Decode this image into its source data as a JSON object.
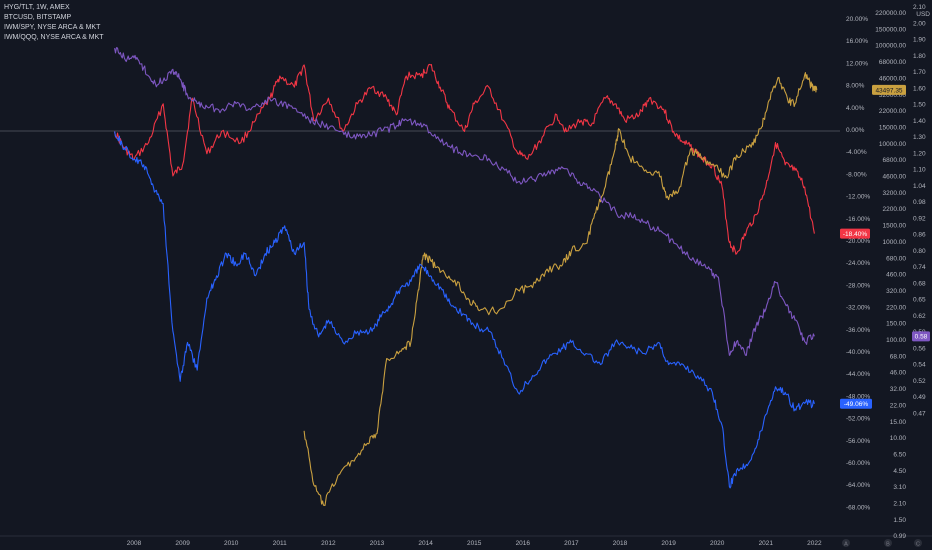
{
  "legend": {
    "line1": "HYG/TLT, 1W, AMEX",
    "line2": "BTCUSD, BITSTAMP",
    "line3": "IWM/SPY, NYSE ARCA & MKT",
    "line4": "IWM/QQQ, NYSE ARCA & MKT"
  },
  "axis_icons": [
    "A",
    "B",
    "C"
  ],
  "colors": {
    "background": "#131722",
    "text": "#b2b5be",
    "zero_line": "#787b86",
    "hyg_tlt": "#f23645",
    "btc": "#c9a040",
    "iwm_spy": "#2962ff",
    "iwm_qqq": "#7e57c2"
  },
  "chart_data": {
    "type": "line",
    "x_unit": "year",
    "x_range": [
      2007.0,
      2022.2
    ],
    "x_ticks": [
      "2008",
      "2009",
      "2010",
      "2011",
      "2012",
      "2013",
      "2014",
      "2015",
      "2016",
      "2017",
      "2018",
      "2019",
      "2020",
      "2021",
      "2022"
    ],
    "grid": false,
    "percent_axis": {
      "label_min": -68,
      "label_max": 20,
      "step": 4,
      "labels": [
        "20.00%",
        "16.00%",
        "12.00%",
        "8.00%",
        "4.00%",
        "0.00%",
        "-4.00%",
        "-8.00%",
        "-12.00%",
        "-16.00%",
        "-20.00%",
        "-24.00%",
        "-28.00%",
        "-32.00%",
        "-36.00%",
        "-40.00%",
        "-44.00%",
        "-48.00%",
        "-52.00%",
        "-56.00%",
        "-60.00%",
        "-64.00%",
        "-68.00%"
      ]
    },
    "btc_axis": {
      "unit": "USD",
      "labels": [
        "220000.00",
        "150000.00",
        "100000.00",
        "68000.00",
        "46000.00",
        "32000.00",
        "22000.00",
        "15000.00",
        "10000.00",
        "6800.00",
        "4600.00",
        "3200.00",
        "2200.00",
        "1500.00",
        "1000.00",
        "680.00",
        "460.00",
        "320.00",
        "220.00",
        "150.00",
        "100.00",
        "68.00",
        "46.00",
        "32.00",
        "22.00",
        "15.00",
        "10.00",
        "6.50",
        "4.50",
        "3.10",
        "2.10",
        "1.50",
        "0.99"
      ]
    },
    "ratio_axis": {
      "labels": [
        "2.10",
        "2.00",
        "1.90",
        "1.80",
        "1.70",
        "1.60",
        "1.50",
        "1.40",
        "1.30",
        "1.20",
        "1.10",
        "1.04",
        "0.98",
        "0.92",
        "0.86",
        "0.80",
        "0.74",
        "0.68",
        "0.65",
        "0.62",
        "0.59",
        "0.56",
        "0.54",
        "0.52",
        "0.49",
        "0.47"
      ]
    },
    "value_badges": [
      {
        "series": "BTCUSD",
        "text": "43497.35",
        "color": "#c9a040"
      },
      {
        "series": "HYG/TLT",
        "text": "-18.40%",
        "color": "#f23645"
      },
      {
        "series": "IWM/SPY",
        "text": "-49.06%",
        "color": "#2962ff"
      },
      {
        "series": "IWM/QQQ",
        "text": "0.58",
        "color": "#7e57c2"
      }
    ],
    "series": [
      {
        "name": "HYG/TLT",
        "color": "#f23645",
        "unit": "percent",
        "points": [
          [
            2007.6,
            0
          ],
          [
            2007.8,
            -3
          ],
          [
            2008.0,
            -5
          ],
          [
            2008.3,
            -2
          ],
          [
            2008.6,
            5
          ],
          [
            2008.8,
            -8
          ],
          [
            2009.0,
            -6
          ],
          [
            2009.2,
            6
          ],
          [
            2009.5,
            -4
          ],
          [
            2009.8,
            0
          ],
          [
            2010.2,
            -2
          ],
          [
            2010.5,
            2
          ],
          [
            2010.8,
            6
          ],
          [
            2011.0,
            10
          ],
          [
            2011.3,
            8
          ],
          [
            2011.5,
            12
          ],
          [
            2011.7,
            2
          ],
          [
            2012.0,
            6
          ],
          [
            2012.3,
            0
          ],
          [
            2012.6,
            5
          ],
          [
            2012.9,
            8
          ],
          [
            2013.2,
            6
          ],
          [
            2013.4,
            3
          ],
          [
            2013.6,
            10
          ],
          [
            2013.9,
            10
          ],
          [
            2014.1,
            12
          ],
          [
            2014.3,
            8
          ],
          [
            2014.5,
            4
          ],
          [
            2014.8,
            0
          ],
          [
            2015.0,
            5
          ],
          [
            2015.3,
            8
          ],
          [
            2015.6,
            2
          ],
          [
            2015.9,
            -4
          ],
          [
            2016.1,
            -5
          ],
          [
            2016.4,
            -1
          ],
          [
            2016.7,
            3
          ],
          [
            2016.9,
            0
          ],
          [
            2017.2,
            2
          ],
          [
            2017.4,
            1
          ],
          [
            2017.7,
            6
          ],
          [
            2017.9,
            5
          ],
          [
            2018.1,
            2
          ],
          [
            2018.4,
            3
          ],
          [
            2018.6,
            6
          ],
          [
            2018.9,
            4
          ],
          [
            2019.1,
            0
          ],
          [
            2019.3,
            -2
          ],
          [
            2019.5,
            -3
          ],
          [
            2019.7,
            -5
          ],
          [
            2019.9,
            -6
          ],
          [
            2020.1,
            -10
          ],
          [
            2020.25,
            -20
          ],
          [
            2020.4,
            -22
          ],
          [
            2020.6,
            -18
          ],
          [
            2020.8,
            -15
          ],
          [
            2021.0,
            -10
          ],
          [
            2021.2,
            -2
          ],
          [
            2021.4,
            -6
          ],
          [
            2021.6,
            -7
          ],
          [
            2021.8,
            -10
          ],
          [
            2022.0,
            -18.4
          ]
        ]
      },
      {
        "name": "BTCUSD",
        "color": "#c9a040",
        "unit": "USD",
        "points": [
          [
            2011.5,
            15
          ],
          [
            2011.7,
            4
          ],
          [
            2011.9,
            2.5
          ],
          [
            2012.2,
            5
          ],
          [
            2012.5,
            7
          ],
          [
            2012.8,
            11
          ],
          [
            2013.0,
            14
          ],
          [
            2013.2,
            80
          ],
          [
            2013.5,
            95
          ],
          [
            2013.7,
            120
          ],
          [
            2013.85,
            400
          ],
          [
            2013.95,
            900
          ],
          [
            2014.1,
            800
          ],
          [
            2014.3,
            600
          ],
          [
            2014.6,
            500
          ],
          [
            2014.9,
            320
          ],
          [
            2015.1,
            250
          ],
          [
            2015.5,
            250
          ],
          [
            2015.9,
            400
          ],
          [
            2016.2,
            420
          ],
          [
            2016.5,
            650
          ],
          [
            2016.8,
            700
          ],
          [
            2017.0,
            1000
          ],
          [
            2017.3,
            1200
          ],
          [
            2017.5,
            2500
          ],
          [
            2017.7,
            4500
          ],
          [
            2017.9,
            11000
          ],
          [
            2017.97,
            18000
          ],
          [
            2018.2,
            9000
          ],
          [
            2018.5,
            6500
          ],
          [
            2018.8,
            6400
          ],
          [
            2018.95,
            3500
          ],
          [
            2019.2,
            4000
          ],
          [
            2019.45,
            11000
          ],
          [
            2019.7,
            8500
          ],
          [
            2019.95,
            7200
          ],
          [
            2020.2,
            5500
          ],
          [
            2020.4,
            9500
          ],
          [
            2020.7,
            11500
          ],
          [
            2020.9,
            18000
          ],
          [
            2021.05,
            33000
          ],
          [
            2021.25,
            58000
          ],
          [
            2021.45,
            35000
          ],
          [
            2021.6,
            32000
          ],
          [
            2021.8,
            62000
          ],
          [
            2021.95,
            47000
          ],
          [
            2022.05,
            43497.35
          ]
        ]
      },
      {
        "name": "IWM/SPY",
        "color": "#2962ff",
        "unit": "percent",
        "points": [
          [
            2007.6,
            0
          ],
          [
            2007.8,
            -3
          ],
          [
            2008.0,
            -5
          ],
          [
            2008.2,
            -6
          ],
          [
            2008.4,
            -10
          ],
          [
            2008.6,
            -13
          ],
          [
            2008.8,
            -36
          ],
          [
            2008.95,
            -45
          ],
          [
            2009.1,
            -38
          ],
          [
            2009.3,
            -43
          ],
          [
            2009.5,
            -30
          ],
          [
            2009.7,
            -26
          ],
          [
            2009.9,
            -22
          ],
          [
            2010.1,
            -24
          ],
          [
            2010.3,
            -22
          ],
          [
            2010.5,
            -26
          ],
          [
            2010.7,
            -22
          ],
          [
            2010.9,
            -20
          ],
          [
            2011.1,
            -17
          ],
          [
            2011.3,
            -22
          ],
          [
            2011.5,
            -20
          ],
          [
            2011.6,
            -32
          ],
          [
            2011.8,
            -37
          ],
          [
            2012.0,
            -34
          ],
          [
            2012.3,
            -38
          ],
          [
            2012.6,
            -36
          ],
          [
            2012.9,
            -36
          ],
          [
            2013.1,
            -33
          ],
          [
            2013.3,
            -31
          ],
          [
            2013.5,
            -28
          ],
          [
            2013.7,
            -27
          ],
          [
            2013.9,
            -24
          ],
          [
            2014.1,
            -26
          ],
          [
            2014.3,
            -28
          ],
          [
            2014.5,
            -31
          ],
          [
            2014.8,
            -33
          ],
          [
            2015.0,
            -35
          ],
          [
            2015.3,
            -36
          ],
          [
            2015.6,
            -41
          ],
          [
            2015.9,
            -47
          ],
          [
            2016.2,
            -44
          ],
          [
            2016.5,
            -41
          ],
          [
            2016.8,
            -39
          ],
          [
            2017.0,
            -38
          ],
          [
            2017.3,
            -40
          ],
          [
            2017.6,
            -42
          ],
          [
            2017.9,
            -38
          ],
          [
            2018.2,
            -39
          ],
          [
            2018.5,
            -40
          ],
          [
            2018.8,
            -38
          ],
          [
            2019.0,
            -42
          ],
          [
            2019.3,
            -42
          ],
          [
            2019.6,
            -44
          ],
          [
            2019.9,
            -47
          ],
          [
            2020.1,
            -53
          ],
          [
            2020.25,
            -64
          ],
          [
            2020.4,
            -61
          ],
          [
            2020.6,
            -60
          ],
          [
            2020.8,
            -57
          ],
          [
            2021.0,
            -51
          ],
          [
            2021.2,
            -46
          ],
          [
            2021.4,
            -47
          ],
          [
            2021.6,
            -50
          ],
          [
            2021.8,
            -49
          ],
          [
            2022.0,
            -49.06
          ]
        ]
      },
      {
        "name": "IWM/QQQ",
        "color": "#7e57c2",
        "unit": "ratio",
        "points": [
          [
            2007.6,
            1.84
          ],
          [
            2007.8,
            1.78
          ],
          [
            2008.0,
            1.78
          ],
          [
            2008.2,
            1.72
          ],
          [
            2008.4,
            1.62
          ],
          [
            2008.6,
            1.64
          ],
          [
            2008.8,
            1.71
          ],
          [
            2008.95,
            1.65
          ],
          [
            2009.1,
            1.55
          ],
          [
            2009.3,
            1.5
          ],
          [
            2009.5,
            1.48
          ],
          [
            2009.8,
            1.46
          ],
          [
            2010.1,
            1.5
          ],
          [
            2010.4,
            1.46
          ],
          [
            2010.7,
            1.52
          ],
          [
            2011.0,
            1.5
          ],
          [
            2011.3,
            1.47
          ],
          [
            2011.6,
            1.4
          ],
          [
            2011.9,
            1.37
          ],
          [
            2012.2,
            1.33
          ],
          [
            2012.5,
            1.29
          ],
          [
            2012.8,
            1.3
          ],
          [
            2013.1,
            1.33
          ],
          [
            2013.4,
            1.36
          ],
          [
            2013.6,
            1.4
          ],
          [
            2013.9,
            1.38
          ],
          [
            2014.1,
            1.32
          ],
          [
            2014.4,
            1.25
          ],
          [
            2014.7,
            1.2
          ],
          [
            2015.0,
            1.18
          ],
          [
            2015.3,
            1.16
          ],
          [
            2015.6,
            1.1
          ],
          [
            2015.9,
            1.05
          ],
          [
            2016.2,
            1.06
          ],
          [
            2016.5,
            1.08
          ],
          [
            2016.8,
            1.11
          ],
          [
            2017.1,
            1.06
          ],
          [
            2017.4,
            1.02
          ],
          [
            2017.7,
            0.98
          ],
          [
            2018.0,
            0.92
          ],
          [
            2018.3,
            0.93
          ],
          [
            2018.6,
            0.89
          ],
          [
            2018.9,
            0.86
          ],
          [
            2019.2,
            0.81
          ],
          [
            2019.5,
            0.77
          ],
          [
            2019.8,
            0.73
          ],
          [
            2020.0,
            0.7
          ],
          [
            2020.25,
            0.55
          ],
          [
            2020.4,
            0.57
          ],
          [
            2020.6,
            0.55
          ],
          [
            2020.8,
            0.6
          ],
          [
            2021.0,
            0.63
          ],
          [
            2021.2,
            0.68
          ],
          [
            2021.4,
            0.64
          ],
          [
            2021.6,
            0.61
          ],
          [
            2021.8,
            0.57
          ],
          [
            2022.0,
            0.58
          ]
        ]
      }
    ]
  }
}
